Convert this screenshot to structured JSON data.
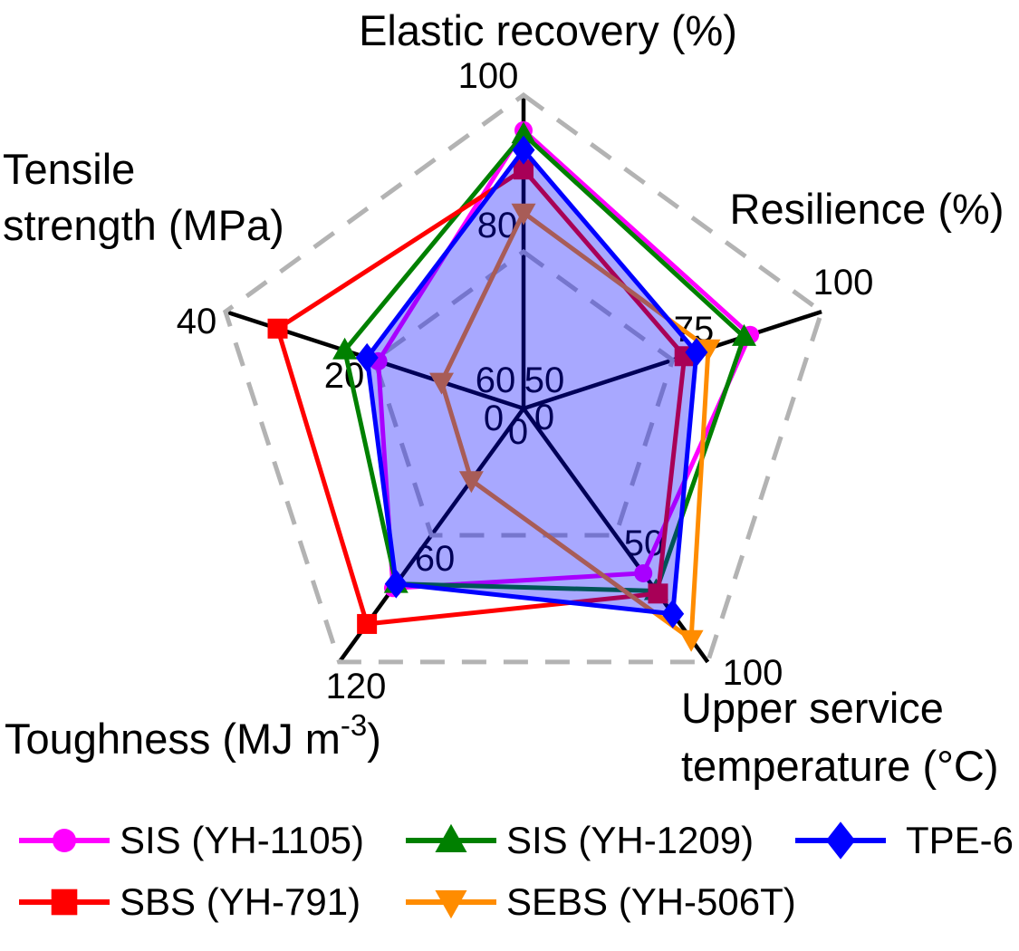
{
  "figure": {
    "background": "#FFFFFF",
    "legend_position": "bottom"
  },
  "chart_data": {
    "type": "radar",
    "title": "",
    "axes": [
      {
        "label": "Elastic recovery (%)",
        "label_lines": [
          "Elastic recovery (%)"
        ],
        "min": 60,
        "mid": 80,
        "max": 100
      },
      {
        "label": "Resilience (%)",
        "label_lines": [
          "Resilience (%)"
        ],
        "min": 50,
        "mid": 75,
        "max": 100
      },
      {
        "label": "Upper service temperature (°C)",
        "label_lines": [
          "Upper service",
          "temperature (°C)"
        ],
        "min": 0,
        "mid": 50,
        "max": 100
      },
      {
        "label": "Toughness (MJ m⁻³)",
        "label_parts": [
          {
            "t": "Toughness (MJ m"
          },
          {
            "t": "-3",
            "sup": true
          },
          {
            "t": ")"
          }
        ],
        "min": 0,
        "mid": 60,
        "max": 120
      },
      {
        "label": "Tensile strength (MPa)",
        "label_lines": [
          "Tensile",
          "strength (MPa)"
        ],
        "min": 0,
        "mid": 20,
        "max": 40
      }
    ],
    "series": [
      {
        "name": "SIS (YH-1105)",
        "color": "#FF00FF",
        "marker": "circle",
        "filled": false,
        "values": [
          95.5,
          88,
          65,
          85,
          19.5
        ]
      },
      {
        "name": "SIS (YH-1209)",
        "color": "#008000",
        "marker": "triangle-up",
        "filled": false,
        "values": [
          95,
          87,
          72,
          83,
          24
        ]
      },
      {
        "name": "TPE-6",
        "color": "#0000FF",
        "marker": "diamond",
        "filled": true,
        "fill_opacity": 0.34,
        "values": [
          93,
          79,
          81,
          83,
          21
        ]
      },
      {
        "name": "SBS (YH-791)",
        "color": "#FF0000",
        "marker": "square",
        "filled": false,
        "values": [
          90.5,
          77,
          73,
          102,
          33
        ]
      },
      {
        "name": "SEBS (YH-506T)",
        "color": "#FF8C00",
        "marker": "triangle-down",
        "filled": false,
        "values": [
          85,
          81,
          91,
          34,
          11
        ]
      }
    ],
    "grid": {
      "levels": [
        0.5,
        1.0
      ],
      "style": "dashed",
      "color": "#B3B3B3"
    },
    "axis_line_color": "#000000"
  }
}
